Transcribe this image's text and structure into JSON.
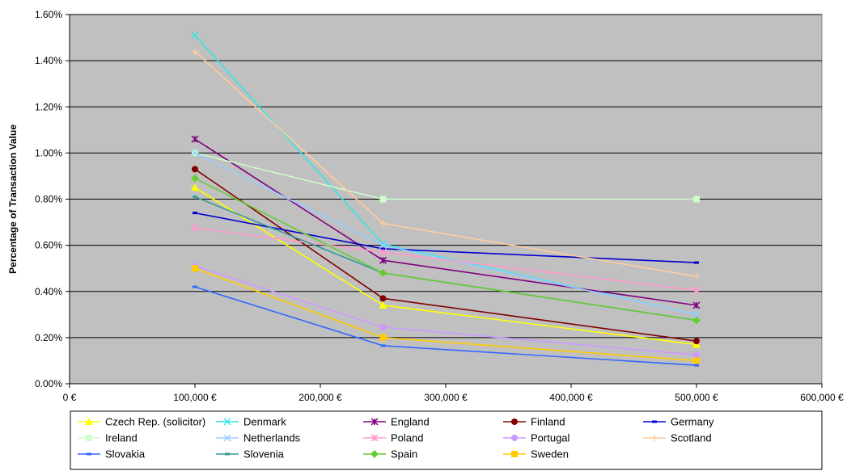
{
  "chart_data": {
    "type": "line",
    "title": "",
    "xlabel": "",
    "ylabel": "Percentage of Transaction Value",
    "xlim": [
      0,
      600000
    ],
    "ylim": [
      0,
      1.6
    ],
    "x_ticks": [
      0,
      100000,
      200000,
      300000,
      400000,
      500000,
      600000
    ],
    "x_tick_labels": [
      "0 €",
      "100,000 €",
      "200,000 €",
      "300,000 €",
      "400,000 €",
      "500,000 €",
      "600,000 €"
    ],
    "y_ticks": [
      0,
      0.2,
      0.4,
      0.6,
      0.8,
      1.0,
      1.2,
      1.4,
      1.6
    ],
    "y_tick_labels": [
      "0.00%",
      "0.20%",
      "0.40%",
      "0.60%",
      "0.80%",
      "1.00%",
      "1.20%",
      "1.40%",
      "1.60%"
    ],
    "grid": "horizontal",
    "plot_background": "#c0c0c0",
    "legend_position": "bottom",
    "x": [
      100000,
      250000,
      500000
    ],
    "series": [
      {
        "name": "Czech Rep. (solicitor)",
        "color": "#ffff00",
        "marker": "triangle",
        "values": [
          0.85,
          0.34,
          0.17
        ]
      },
      {
        "name": "Denmark",
        "color": "#33e6e6",
        "marker": "x",
        "values": [
          1.51,
          0.605,
          0.3
        ]
      },
      {
        "name": "England",
        "color": "#800080",
        "marker": "asterisk",
        "values": [
          1.06,
          0.535,
          0.34
        ]
      },
      {
        "name": "Finland",
        "color": "#800000",
        "marker": "circle",
        "values": [
          0.93,
          0.37,
          0.185
        ]
      },
      {
        "name": "Germany",
        "color": "#0000cc",
        "marker": "dash",
        "values": [
          0.74,
          0.585,
          0.525
        ]
      },
      {
        "name": "Ireland",
        "color": "#ccffcc",
        "marker": "square",
        "values": [
          1.0,
          0.8,
          0.8
        ]
      },
      {
        "name": "Netherlands",
        "color": "#99ccff",
        "marker": "x",
        "values": [
          1.0,
          0.6,
          0.3
        ]
      },
      {
        "name": "Poland",
        "color": "#ff99cc",
        "marker": "asterisk",
        "values": [
          0.675,
          0.57,
          0.405
        ]
      },
      {
        "name": "Portugal",
        "color": "#cc99ff",
        "marker": "circle",
        "values": [
          0.51,
          0.245,
          0.125
        ]
      },
      {
        "name": "Scotland",
        "color": "#ffcc99",
        "marker": "plus",
        "values": [
          1.44,
          0.695,
          0.465
        ]
      },
      {
        "name": "Slovakia",
        "color": "#3366ff",
        "marker": "dash",
        "values": [
          0.42,
          0.165,
          0.08
        ]
      },
      {
        "name": "Slovenia",
        "color": "#339999",
        "marker": "dash",
        "values": [
          0.81,
          0.48,
          0.275
        ]
      },
      {
        "name": "Spain",
        "color": "#66cc33",
        "marker": "diamond",
        "values": [
          0.89,
          0.48,
          0.275
        ]
      },
      {
        "name": "Sweden",
        "color": "#ffcc00",
        "marker": "square",
        "values": [
          0.5,
          0.2,
          0.1
        ]
      }
    ]
  }
}
